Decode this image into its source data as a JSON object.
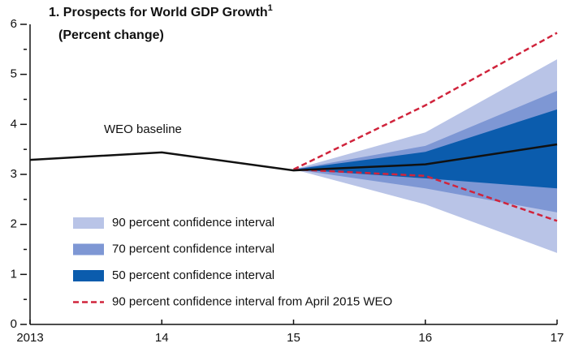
{
  "chart_data": {
    "type": "fan",
    "title": "1. Prospects for World GDP Growth",
    "title_footnote": "1",
    "subtitle": "(Percent change)",
    "categories": [
      "2013",
      "14",
      "15",
      "16",
      "17"
    ],
    "ylim": [
      0,
      6
    ],
    "yticks": [
      0,
      1,
      2,
      3,
      4,
      5,
      6
    ],
    "bands": [
      {
        "name": "90 percent confidence interval",
        "color": "#b9c4e7",
        "lower": [
          null,
          null,
          3.1,
          2.4,
          1.43
        ],
        "upper": [
          null,
          null,
          3.1,
          3.84,
          5.3
        ]
      },
      {
        "name": "70 percent confidence interval",
        "color": "#7e97d4",
        "lower": [
          null,
          null,
          3.1,
          2.72,
          2.24
        ],
        "upper": [
          null,
          null,
          3.1,
          3.57,
          4.67
        ]
      },
      {
        "name": "50 percent confidence interval",
        "color": "#0b5cad",
        "lower": [
          null,
          null,
          3.1,
          2.92,
          2.72
        ],
        "upper": [
          null,
          null,
          3.1,
          3.45,
          4.3
        ]
      }
    ],
    "april_band": {
      "name": "90 percent confidence interval from April 2015 WEO",
      "color": "#d0243c",
      "lower": [
        null,
        null,
        3.1,
        2.97,
        2.07
      ],
      "upper": [
        null,
        null,
        3.1,
        4.38,
        5.83
      ]
    },
    "baseline": {
      "name": "WEO baseline",
      "color": "#111111",
      "values": [
        3.29,
        3.44,
        3.08,
        3.2,
        3.6
      ]
    }
  }
}
